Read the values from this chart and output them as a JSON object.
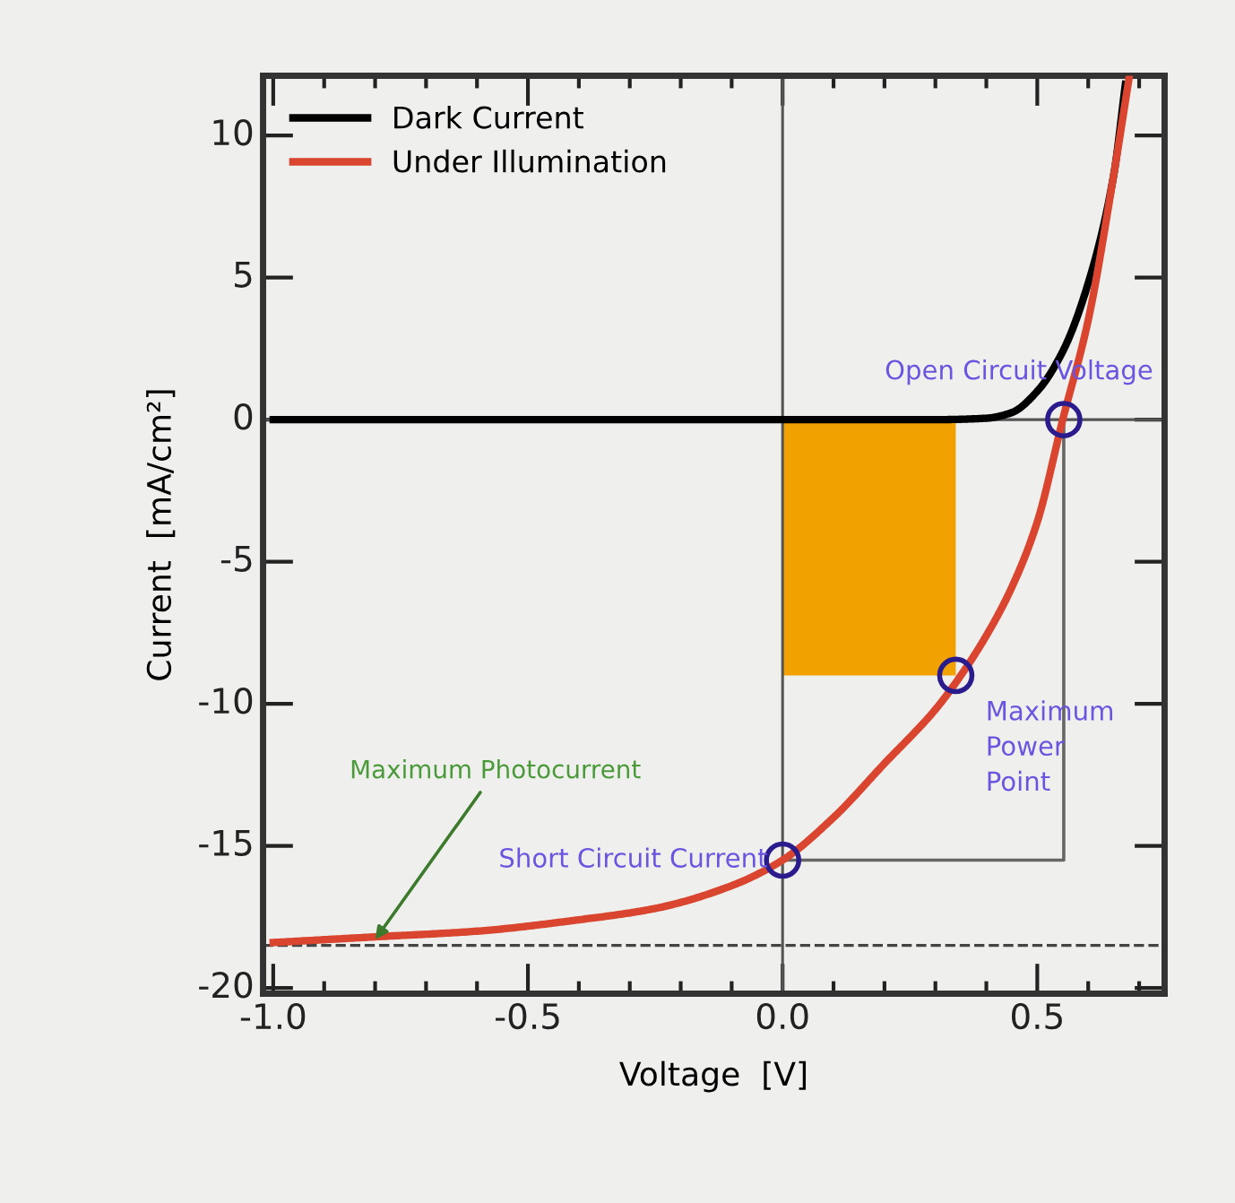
{
  "chart_data": {
    "type": "line",
    "xlabel": "Voltage  [V]",
    "ylabel": "Current  [mA/cm²]",
    "series": [
      {
        "name": "Dark Current",
        "color": "#000000",
        "x": [
          -1.0,
          0.3,
          0.4,
          0.45,
          0.5,
          0.55,
          0.6,
          0.65,
          0.673
        ],
        "values": [
          0,
          0,
          0.05,
          0.25,
          1.0,
          2.4,
          4.8,
          8.6,
          11.8
        ]
      },
      {
        "type": "area",
        "color": "#f2a200",
        "x": [
          0,
          0.34
        ],
        "values": [
          -9,
          -9
        ]
      },
      {
        "name": "Under Illumination",
        "color": "#d9452f",
        "x": [
          -1.0,
          -0.8,
          -0.6,
          -0.4,
          -0.25,
          -0.1,
          0,
          0.1,
          0.2,
          0.3,
          0.35,
          0.4,
          0.45,
          0.5,
          0.55,
          0.6,
          0.65,
          0.68
        ],
        "values": [
          -18.4,
          -18.2,
          -18.0,
          -17.6,
          -17.2,
          -16.4,
          -15.5,
          -14.0,
          -12.1,
          -10.2,
          -9.0,
          -7.6,
          -5.9,
          -3.6,
          0,
          3.5,
          8.6,
          12.0
        ]
      }
    ],
    "xlim": [
      -1.02,
      0.75
    ],
    "ylim": [
      -20.2,
      12.1
    ],
    "xticks": [
      {
        "value": -1.0,
        "label": "-1.0"
      },
      {
        "value": -0.9,
        "label": null
      },
      {
        "value": -0.8,
        "label": null
      },
      {
        "value": -0.7,
        "label": null
      },
      {
        "value": -0.6,
        "label": null
      },
      {
        "value": -0.5,
        "label": "-0.5"
      },
      {
        "value": -0.4,
        "label": null
      },
      {
        "value": -0.3,
        "label": null
      },
      {
        "value": -0.2,
        "label": null
      },
      {
        "value": -0.1,
        "label": null
      },
      {
        "value": 0.0,
        "label": "0.0"
      },
      {
        "value": 0.1,
        "label": null
      },
      {
        "value": 0.2,
        "label": null
      },
      {
        "value": 0.3,
        "label": null
      },
      {
        "value": 0.4,
        "label": null
      },
      {
        "value": 0.5,
        "label": "0.5"
      },
      {
        "value": 0.6,
        "label": null
      },
      {
        "value": 0.7,
        "label": null
      }
    ],
    "yticks": [
      -20,
      -15,
      -10,
      -5,
      0,
      5,
      10
    ],
    "ref_lines": [
      {
        "axis": "x",
        "value": 0,
        "color": "#555555"
      },
      {
        "axis": "y",
        "value": 0,
        "color": "#555555"
      },
      {
        "axis": "y",
        "value": -18.5,
        "color": "#444444",
        "line_style": "dashed"
      }
    ],
    "annotations": [
      {
        "text": "Open Circuit Voltage",
        "x": 0.552,
        "y": 0
      },
      {
        "text": "Maximum\nPower\nPoint",
        "x": 0.34,
        "y": -9
      },
      {
        "text": "Short Circuit Current",
        "x": 0,
        "y": -15.5
      },
      {
        "text": "Maximum Photocurrent",
        "x": -0.8,
        "y": -18.3
      }
    ],
    "legend": "top left",
    "grid": false,
    "line_style": "solid"
  }
}
